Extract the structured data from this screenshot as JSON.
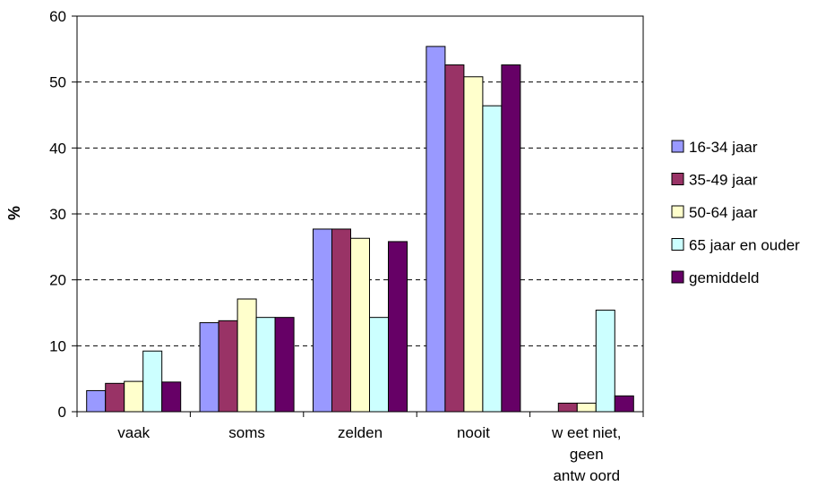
{
  "chart_data": {
    "type": "bar",
    "categories": [
      [
        "vaak"
      ],
      [
        "soms"
      ],
      [
        "zelden"
      ],
      [
        "nooit"
      ],
      [
        "w eet niet,",
        "geen",
        "antw oord"
      ]
    ],
    "series": [
      {
        "name": "16-34 jaar",
        "color": "#9999FF",
        "values": [
          3.2,
          13.5,
          27.7,
          55.4,
          0
        ]
      },
      {
        "name": "35-49 jaar",
        "color": "#993366",
        "values": [
          4.3,
          13.8,
          27.7,
          52.6,
          1.3
        ]
      },
      {
        "name": "50-64 jaar",
        "color": "#FFFFCC",
        "values": [
          4.6,
          17.1,
          26.3,
          50.8,
          1.3
        ]
      },
      {
        "name": "65 jaar en ouder",
        "color": "#CCFFFF",
        "values": [
          9.2,
          14.3,
          14.3,
          46.4,
          15.4
        ]
      },
      {
        "name": "gemiddeld",
        "color": "#660066",
        "values": [
          4.5,
          14.3,
          25.8,
          52.6,
          2.4
        ]
      }
    ],
    "ylabel": "%",
    "xlabel": "",
    "ylim": [
      0,
      60
    ],
    "yticks": [
      0,
      10,
      20,
      30,
      40,
      50,
      60
    ],
    "grid": "horizontal dashed",
    "legend": "right"
  }
}
